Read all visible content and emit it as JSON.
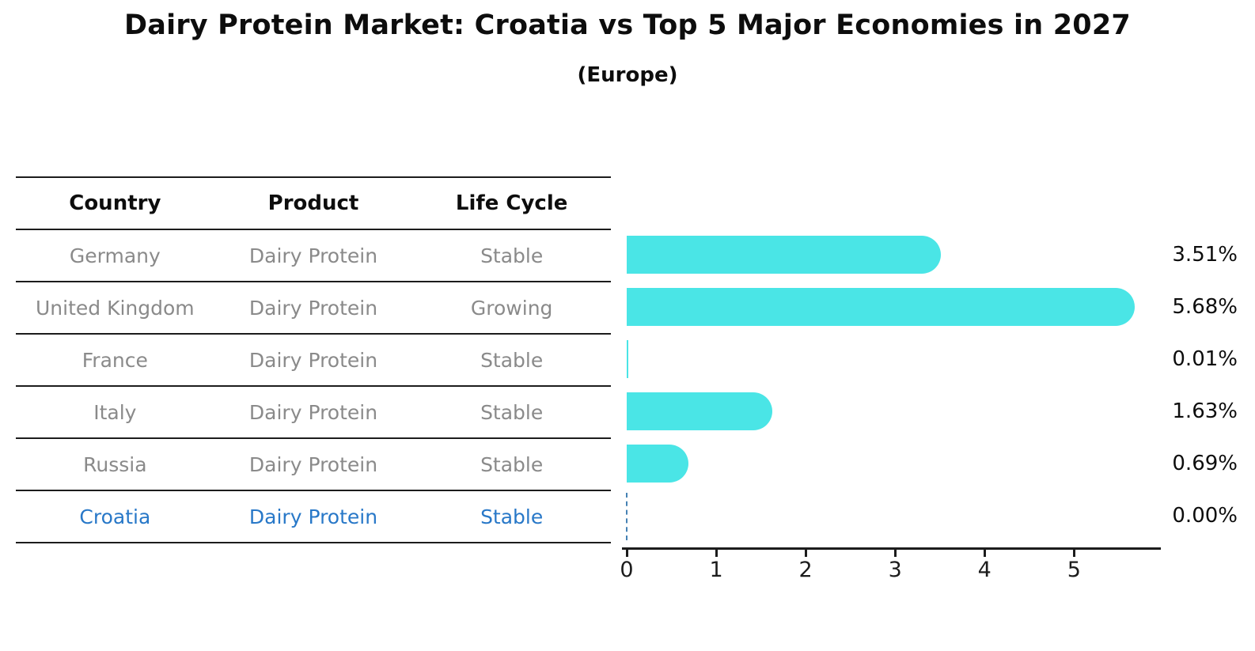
{
  "title": "Dairy Protein Market: Croatia vs Top 5 Major Economies in 2027",
  "subtitle": "(Europe)",
  "table": {
    "headers": [
      "Country",
      "Product",
      "Life Cycle"
    ],
    "rows": [
      {
        "country": "Germany",
        "product": "Dairy Protein",
        "life_cycle": "Stable",
        "highlight": false
      },
      {
        "country": "United Kingdom",
        "product": "Dairy Protein",
        "life_cycle": "Growing",
        "highlight": false
      },
      {
        "country": "France",
        "product": "Dairy Protein",
        "life_cycle": "Stable",
        "highlight": false
      },
      {
        "country": "Italy",
        "product": "Dairy Protein",
        "life_cycle": "Stable",
        "highlight": false
      },
      {
        "country": "Russia",
        "product": "Dairy Protein",
        "life_cycle": "Stable",
        "highlight": false
      },
      {
        "country": "Croatia",
        "product": "Dairy Protein",
        "life_cycle": "Stable",
        "highlight": true
      }
    ]
  },
  "chart_data": {
    "type": "bar",
    "orientation": "horizontal",
    "title": "Dairy Protein Market: Croatia vs Top 5 Major Economies in 2027 (Europe)",
    "categories": [
      "Germany",
      "United Kingdom",
      "France",
      "Italy",
      "Russia",
      "Croatia"
    ],
    "values": [
      3.51,
      5.68,
      0.01,
      1.63,
      0.69,
      0.0
    ],
    "labels": [
      "3.51%",
      "5.68%",
      "0.01%",
      "1.63%",
      "0.69%",
      "0.00%"
    ],
    "xlabel": "",
    "ylabel": "",
    "xticks": [
      "0",
      "1",
      "2",
      "3",
      "4",
      "5"
    ],
    "xlim": [
      0,
      5.97
    ],
    "grid": false,
    "legend": false,
    "zero_marker_row": "Croatia"
  },
  "colors": {
    "bar": "#4ae5e6",
    "highlight_text": "#2878c8",
    "row_text": "#8a8a8a",
    "line": "#1c1c1c",
    "zero_marker": "#4682b4",
    "background": "#ffffff"
  }
}
